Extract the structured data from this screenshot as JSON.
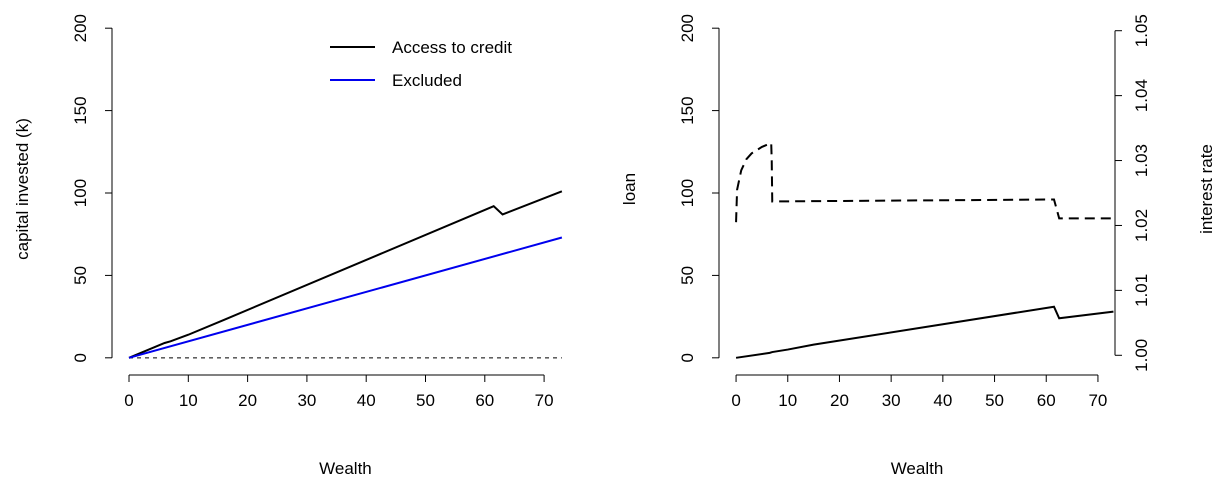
{
  "chart_data": [
    {
      "type": "line",
      "xlabel": "Wealth",
      "ylabel": "capital invested (k)",
      "xlim": [
        -2.92,
        75.92
      ],
      "ylim": [
        -8,
        208
      ],
      "xticks": [
        0,
        10,
        20,
        30,
        40,
        50,
        60,
        70
      ],
      "yticks": [
        0,
        50,
        100,
        150,
        200
      ],
      "hline": 0,
      "series": [
        {
          "name": "Access to credit",
          "color": "#000000",
          "x": [
            0,
            6,
            7,
            10,
            16,
            61.5,
            63,
            73
          ],
          "values": [
            0,
            9,
            10,
            14,
            23,
            92,
            87,
            101
          ]
        },
        {
          "name": "Excluded",
          "color": "#0000ee",
          "x": [
            0,
            73
          ],
          "values": [
            0,
            73
          ]
        }
      ]
    },
    {
      "type": "line",
      "xlabel": "Wealth",
      "ylabel": "loan",
      "y2label": "interest rate",
      "xlim": [
        -3.3,
        73.3
      ],
      "ylim": [
        -8,
        208
      ],
      "y2lim": [
        0.99758,
        1.05242
      ],
      "xticks": [
        0,
        10,
        20,
        30,
        40,
        50,
        60,
        70
      ],
      "yticks": [
        0,
        50,
        100,
        150,
        200
      ],
      "y2ticks": [
        {
          "value": 1.0,
          "label": "1.00"
        },
        1.01,
        1.02,
        1.03,
        1.04,
        1.05
      ],
      "series": [
        {
          "name": "loan",
          "color": "#000000",
          "x": [
            0,
            6.5,
            7,
            10,
            15,
            61.5,
            62.5,
            73
          ],
          "values": [
            0,
            3,
            3.5,
            5,
            8,
            31,
            24,
            28
          ]
        },
        {
          "name": "interest rate",
          "color": "#000000",
          "axis": "y2",
          "dashed": true,
          "x": [
            0,
            0.2,
            1,
            2,
            3,
            5,
            6.8,
            6.9,
            7,
            61.5,
            62.5,
            73
          ],
          "values": [
            1.0205,
            1.0255,
            1.0285,
            1.0302,
            1.0311,
            1.0321,
            1.0327,
            1.03,
            1.0237,
            1.024,
            1.0211,
            1.0211
          ]
        }
      ]
    }
  ]
}
